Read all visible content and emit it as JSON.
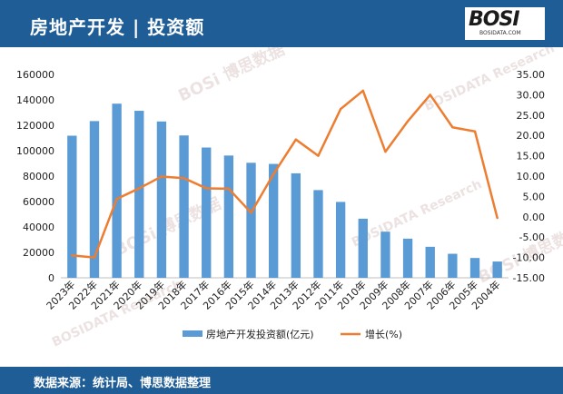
{
  "header": {
    "title": "房地产开发 | 投资额"
  },
  "logo": {
    "text": "BOSI",
    "subtext": "BOSIDATA.COM"
  },
  "footer": {
    "source": "数据来源：统计局、博思数据整理"
  },
  "chart_data": {
    "type": "bar",
    "categories": [
      "2023年",
      "2022年",
      "2021年",
      "2020年",
      "2019年",
      "2018年",
      "2017年",
      "2016年",
      "2015年",
      "2014年",
      "2013年",
      "2012年",
      "2011年",
      "2010年",
      "2009年",
      "2008年",
      "2007年",
      "2006年",
      "2005年",
      "2004年"
    ],
    "series": [
      {
        "name": "房地产开发投资额(亿元)",
        "type": "bar",
        "axis": "left",
        "values": [
          111800,
          123300,
          137000,
          131400,
          123000,
          112000,
          102500,
          96200,
          90500,
          89600,
          82200,
          69000,
          59700,
          46500,
          36300,
          30800,
          24400,
          18900,
          15600,
          12800
        ]
      },
      {
        "name": "增长(%)",
        "type": "line",
        "axis": "right",
        "values": [
          -9.5,
          -10.0,
          4.4,
          7.0,
          9.9,
          9.5,
          7.0,
          6.9,
          1.0,
          10.5,
          19.0,
          15.0,
          26.5,
          31.0,
          16.0,
          23.5,
          30.0,
          22.0,
          21.0,
          -0.3
        ]
      }
    ],
    "y_left": {
      "ticks": [
        "0",
        "20000",
        "40000",
        "60000",
        "80000",
        "100000",
        "120000",
        "140000",
        "160000"
      ],
      "min": 0,
      "max": 160000
    },
    "y_right": {
      "ticks": [
        "-15.00",
        "-10.00",
        "-5.00",
        "0.00",
        "5.00",
        "10.00",
        "15.00",
        "20.00",
        "25.00",
        "30.00",
        "35.00"
      ],
      "min": -15,
      "max": 35
    },
    "legend_position": "bottom",
    "colors": {
      "bar": "#5b9bd5",
      "line": "#ed7d31"
    }
  },
  "watermarks": [
    "BOSi 博思数据",
    "BOSIDATA Research"
  ]
}
